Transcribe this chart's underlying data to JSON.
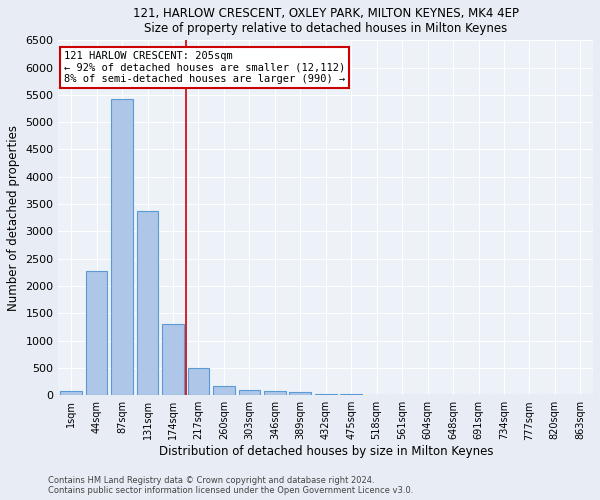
{
  "title1": "121, HARLOW CRESCENT, OXLEY PARK, MILTON KEYNES, MK4 4EP",
  "title2": "Size of property relative to detached houses in Milton Keynes",
  "xlabel": "Distribution of detached houses by size in Milton Keynes",
  "ylabel": "Number of detached properties",
  "bar_labels": [
    "1sqm",
    "44sqm",
    "87sqm",
    "131sqm",
    "174sqm",
    "217sqm",
    "260sqm",
    "303sqm",
    "346sqm",
    "389sqm",
    "432sqm",
    "475sqm",
    "518sqm",
    "561sqm",
    "604sqm",
    "648sqm",
    "691sqm",
    "734sqm",
    "777sqm",
    "820sqm",
    "863sqm"
  ],
  "bar_values": [
    70,
    2280,
    5420,
    3380,
    1310,
    490,
    175,
    100,
    75,
    50,
    30,
    20,
    10,
    5,
    3,
    2,
    1,
    1,
    1,
    0,
    0
  ],
  "bar_color": "#aec6e8",
  "bar_edge_color": "#5b9bd5",
  "vline_x_index": 4.5,
  "annotation_text1": "121 HARLOW CRESCENT: 205sqm",
  "annotation_text2": "← 92% of detached houses are smaller (12,112)",
  "annotation_text3": "8% of semi-detached houses are larger (990) →",
  "annotation_box_color": "#ffffff",
  "annotation_box_edge": "#cc0000",
  "vline_color": "#cc0000",
  "ylim": [
    0,
    6500
  ],
  "yticks": [
    0,
    500,
    1000,
    1500,
    2000,
    2500,
    3000,
    3500,
    4000,
    4500,
    5000,
    5500,
    6000,
    6500
  ],
  "footer1": "Contains HM Land Registry data © Crown copyright and database right 2024.",
  "footer2": "Contains public sector information licensed under the Open Government Licence v3.0.",
  "bg_color": "#e8edf5",
  "plot_bg_color": "#edf1f8"
}
